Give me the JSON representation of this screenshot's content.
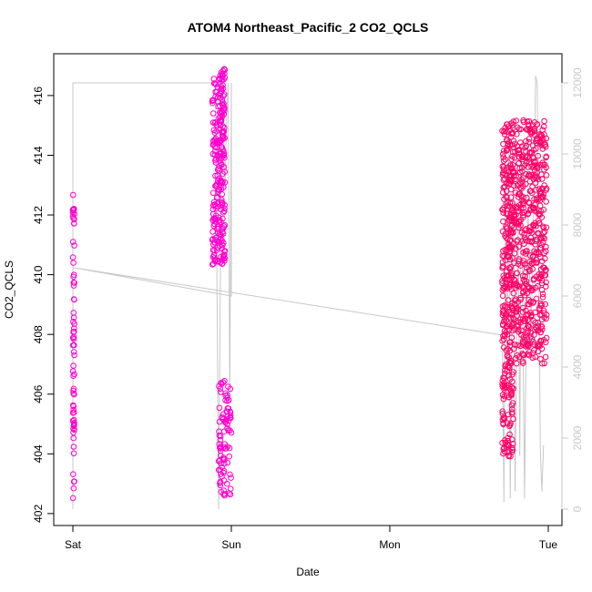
{
  "chart_data": {
    "type": "scatter",
    "title": "ATOM4 Northeast_Pacific_2 CO2_QCLS",
    "xlabel": "Date",
    "ylabel": "CO2_QCLS",
    "x_ticks": [
      {
        "label": "Sat",
        "day": 0
      },
      {
        "label": "Sun",
        "day": 1
      },
      {
        "label": "Mon",
        "day": 2
      },
      {
        "label": "Tue",
        "day": 3
      }
    ],
    "y_ticks": [
      402,
      404,
      406,
      408,
      410,
      412,
      414,
      416
    ],
    "y2_ticks": [
      0,
      2000,
      4000,
      6000,
      8000,
      10000,
      12000
    ],
    "ylim": [
      402,
      417
    ],
    "y2lim": [
      0,
      12400
    ],
    "colors": {
      "points_magenta": "#ff00cc",
      "points_pink": "#ff0066",
      "altitude_line": "#c8c8c8",
      "axis": "#000000",
      "right_axis": "#c8c8c8"
    },
    "series": [
      {
        "label": "CO2_QCLS",
        "clusters": [
          {
            "day_start": 0.0,
            "day_end": 0.01,
            "y_min": 402.5,
            "y_max": 413.0,
            "count": 70,
            "color": "points_magenta"
          },
          {
            "day_start": 0.88,
            "day_end": 0.96,
            "y_min": 410.3,
            "y_max": 416.9,
            "count": 260,
            "color": "points_magenta"
          },
          {
            "day_start": 0.92,
            "day_end": 1.0,
            "y_min": 402.6,
            "y_max": 406.5,
            "count": 90,
            "color": "points_magenta"
          },
          {
            "day_start": 2.71,
            "day_end": 2.78,
            "y_min": 403.9,
            "y_max": 415.2,
            "count": 320,
            "color": "points_pink"
          },
          {
            "day_start": 2.78,
            "day_end": 2.99,
            "y_min": 407.0,
            "y_max": 415.2,
            "count": 520,
            "color": "points_pink"
          }
        ]
      },
      {
        "label": "altitude",
        "axis": "right",
        "points": [
          [
            0.0,
            0
          ],
          [
            0.0,
            12000
          ],
          [
            0.3,
            12000
          ],
          [
            0.6,
            12000
          ],
          [
            0.9,
            12000
          ],
          [
            0.92,
            0
          ],
          [
            0.93,
            6000
          ],
          [
            0.94,
            12000
          ],
          [
            0.96,
            9000
          ],
          [
            0.97,
            11000
          ],
          [
            0.98,
            12000
          ],
          [
            0.99,
            3000
          ],
          [
            1.0,
            12000
          ],
          [
            1.0,
            6000
          ],
          [
            0.0,
            6800
          ],
          [
            2.71,
            4900
          ],
          [
            2.72,
            200
          ],
          [
            2.73,
            9500
          ],
          [
            2.74,
            4000
          ],
          [
            2.75,
            10000
          ],
          [
            2.76,
            300
          ],
          [
            2.78,
            9600
          ],
          [
            2.79,
            500
          ],
          [
            2.81,
            8000
          ],
          [
            2.82,
            1500
          ],
          [
            2.83,
            10200
          ],
          [
            2.85,
            300
          ],
          [
            2.87,
            9000
          ],
          [
            2.89,
            5000
          ],
          [
            2.9,
            6500
          ],
          [
            2.92,
            12200
          ],
          [
            2.93,
            12000
          ],
          [
            2.95,
            1600
          ],
          [
            2.96,
            500
          ],
          [
            2.97,
            1800
          ]
        ]
      }
    ]
  }
}
